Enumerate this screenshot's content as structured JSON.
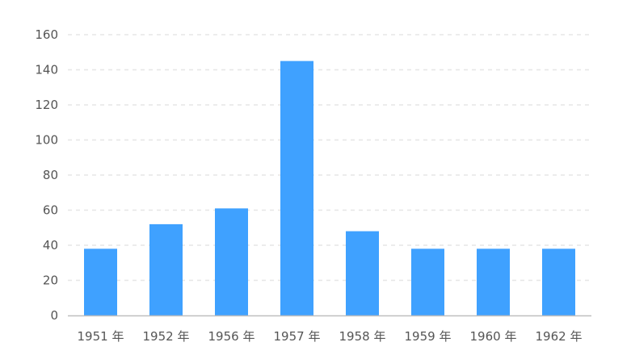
{
  "chart_data": {
    "type": "bar",
    "categories": [
      "1951 年",
      "1952 年",
      "1956 年",
      "1957 年",
      "1958 年",
      "1959 年",
      "1960 年",
      "1962 年"
    ],
    "values": [
      38,
      52,
      61,
      145,
      48,
      38,
      38,
      38
    ],
    "ylim": [
      0,
      160
    ],
    "yticks": [
      0,
      20,
      40,
      60,
      80,
      100,
      120,
      140,
      160
    ],
    "grid": true,
    "bar_color": "#3fa1ff",
    "grid_color": "#e6e6e6",
    "axis_color": "#bfbfbf",
    "text_color": "#555555"
  }
}
